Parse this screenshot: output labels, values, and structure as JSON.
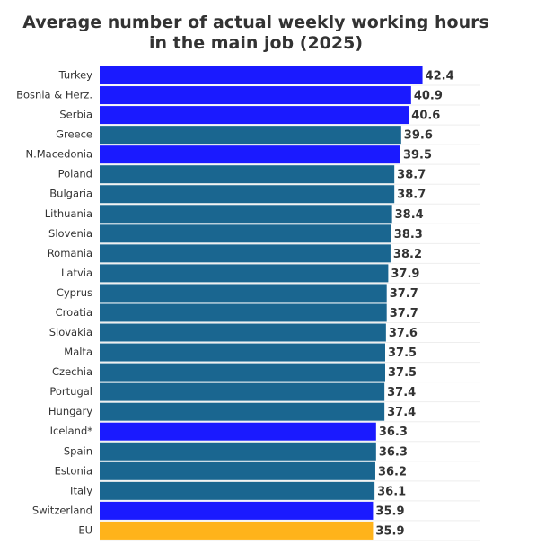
{
  "chart_data": {
    "type": "bar",
    "orientation": "horizontal",
    "title": "Average number of actual weekly working hours in the main job (2025)",
    "categories": [
      "Turkey",
      "Bosnia & Herz.",
      "Serbia",
      "Greece",
      "N.Macedonia",
      "Poland",
      "Bulgaria",
      "Lithuania",
      "Slovenia",
      "Romania",
      "Latvia",
      "Cyprus",
      "Croatia",
      "Slovakia",
      "Malta",
      "Czechia",
      "Portugal",
      "Hungary",
      "Iceland*",
      "Spain",
      "Estonia",
      "Italy",
      "Switzerland",
      "EU"
    ],
    "values": [
      42.4,
      40.9,
      40.6,
      39.6,
      39.5,
      38.7,
      38.7,
      38.4,
      38.3,
      38.2,
      37.9,
      37.7,
      37.7,
      37.6,
      37.5,
      37.5,
      37.4,
      37.4,
      36.3,
      36.3,
      36.2,
      36.1,
      35.9,
      35.9
    ],
    "colors": [
      "#1a1aff",
      "#1a1aff",
      "#1a1aff",
      "#1a6690",
      "#1a1aff",
      "#1a6690",
      "#1a6690",
      "#1a6690",
      "#1a6690",
      "#1a6690",
      "#1a6690",
      "#1a6690",
      "#1a6690",
      "#1a6690",
      "#1a6690",
      "#1a6690",
      "#1a6690",
      "#1a6690",
      "#1a1aff",
      "#1a6690",
      "#1a6690",
      "#1a6690",
      "#1a1aff",
      "#ffb31a"
    ],
    "xlim": [
      0,
      50
    ]
  }
}
